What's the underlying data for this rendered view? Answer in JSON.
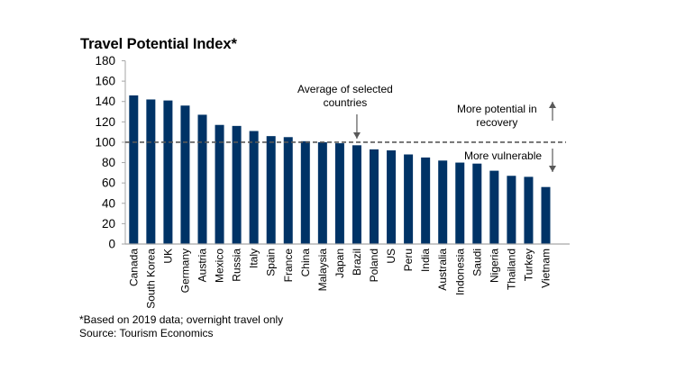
{
  "chart_data": {
    "type": "bar",
    "title": "Travel Potential Index*",
    "xlabel": "",
    "ylabel": "",
    "ylim": [
      0,
      180
    ],
    "yticks": [
      0,
      20,
      40,
      60,
      80,
      100,
      120,
      140,
      160,
      180
    ],
    "grid": false,
    "bar_color": "#003366",
    "categories": [
      "Canada",
      "South Korea",
      "UK",
      "Germany",
      "Austria",
      "Mexico",
      "Russia",
      "Italy",
      "Spain",
      "France",
      "China",
      "Malaysia",
      "Japan",
      "Brazil",
      "Poland",
      "US",
      "Peru",
      "India",
      "Australia",
      "Indonesia",
      "Saudi",
      "Nigeria",
      "Thailand",
      "Turkey",
      "Vietnam"
    ],
    "values": [
      146,
      142,
      141,
      136,
      127,
      117,
      116,
      111,
      106,
      105,
      101,
      100,
      99,
      97,
      93,
      92,
      88,
      85,
      82,
      80,
      79,
      72,
      67,
      66,
      56
    ],
    "reference_line": {
      "value": 100,
      "style": "dashed",
      "color": "#595959"
    },
    "annotations": [
      {
        "lines": [
          "Average of selected",
          "countries"
        ],
        "arrow": "down",
        "target_category": "Brazil"
      },
      {
        "lines": [
          "More potential in",
          "recovery"
        ],
        "arrow": "up"
      },
      {
        "lines": [
          "More vulnerable"
        ],
        "arrow": "down"
      }
    ],
    "footnotes": [
      "*Based on 2019 data; overnight travel only",
      "Source: Tourism Economics"
    ]
  }
}
